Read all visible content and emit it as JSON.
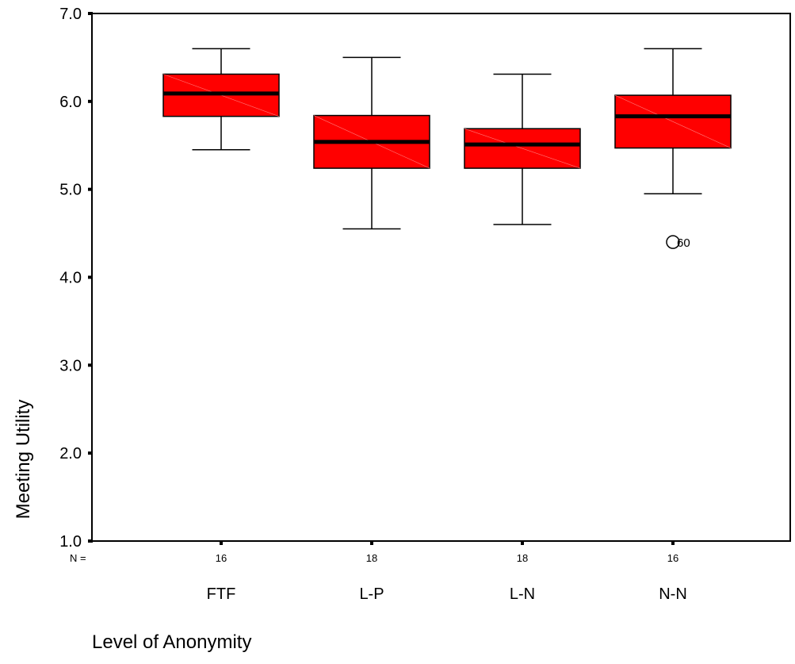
{
  "chart_data": {
    "type": "boxplot",
    "ylabel": "Meeting Utility",
    "xlabel": "Level of Anonymity",
    "ylim": [
      1.0,
      7.0
    ],
    "yticks": [
      "1.0",
      "2.0",
      "3.0",
      "4.0",
      "5.0",
      "6.0",
      "7.0"
    ],
    "n_prefix": "N =",
    "box_color": "#ff0000",
    "groups": [
      {
        "category": "FTF",
        "n": "16",
        "min": 5.45,
        "q1": 5.83,
        "median": 6.09,
        "q3": 6.31,
        "max": 6.6,
        "outliers": []
      },
      {
        "category": "L-P",
        "n": "18",
        "min": 4.55,
        "q1": 5.24,
        "median": 5.54,
        "q3": 5.84,
        "max": 6.5,
        "outliers": []
      },
      {
        "category": "L-N",
        "n": "18",
        "min": 4.6,
        "q1": 5.24,
        "median": 5.51,
        "q3": 5.69,
        "max": 6.31,
        "outliers": []
      },
      {
        "category": "N-N",
        "n": "16",
        "min": 4.95,
        "q1": 5.47,
        "median": 5.83,
        "q3": 6.07,
        "max": 6.6,
        "outliers": [
          {
            "value": 4.4,
            "label": "60"
          }
        ]
      }
    ]
  }
}
